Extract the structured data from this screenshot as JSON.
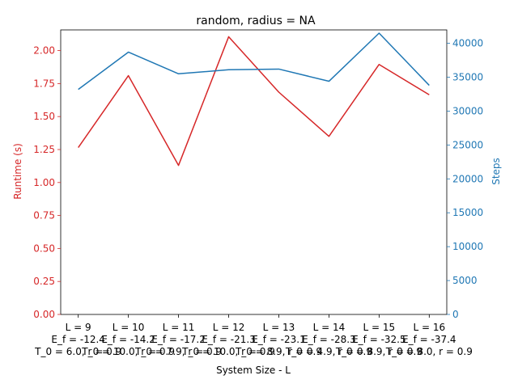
{
  "chart_data": {
    "type": "line",
    "title": "random, radius = NA",
    "xlabel": "System Size - L",
    "ylabel_left": "Runtime (s)",
    "ylabel_right": "Steps",
    "colors": {
      "left": "#d62728",
      "right": "#1f77b4",
      "axis": "#000000"
    },
    "categories": [
      [
        "L = 9",
        "E_f = -12.4",
        "T_0 = 6.0, r = 0.9"
      ],
      [
        "L = 10",
        "E_f = -14.2",
        "T_0 = 10.0, r = 0.9"
      ],
      [
        "L = 11",
        "E_f = -17.2",
        "T_0 = 7.9, r = 0.9"
      ],
      [
        "L = 12",
        "E_f = -21.3",
        "T_0 = 10.0, r = 0.9"
      ],
      [
        "L = 13",
        "E_f = -23.1",
        "T_0 = 8.9, r = 0.9"
      ],
      [
        "L = 14",
        "E_f = -28.3",
        "T_0 = 4.9, r = 0.9"
      ],
      [
        "L = 15",
        "E_f = -32.5",
        "T_0 = 8.9, r = 0.9"
      ],
      [
        "L = 16",
        "E_f = -37.4",
        "T_0 = 8.0, r = 0.9"
      ]
    ],
    "series": [
      {
        "axis": "left",
        "values": [
          1.265,
          1.81,
          1.13,
          2.105,
          1.685,
          1.35,
          1.895,
          1.665
        ]
      },
      {
        "axis": "right",
        "values": [
          33200,
          38700,
          35500,
          36100,
          36200,
          34400,
          41500,
          33800
        ]
      }
    ],
    "ylim_left": [
      0,
      2.1568
    ],
    "ylim_right": [
      0,
      41976
    ],
    "yticks_left": [
      "0.00",
      "0.25",
      "0.50",
      "0.75",
      "1.00",
      "1.25",
      "1.50",
      "1.75",
      "2.00"
    ],
    "yticks_right": [
      "0",
      "5000",
      "10000",
      "15000",
      "20000",
      "25000",
      "30000",
      "35000",
      "40000"
    ],
    "grid": false
  }
}
